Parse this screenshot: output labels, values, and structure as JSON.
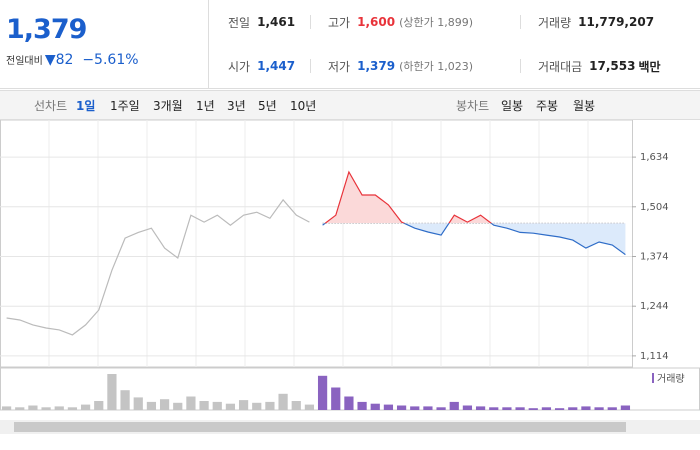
{
  "header": {
    "price": "1,379",
    "change_label": "전일대비",
    "change": "82",
    "change_rate": "−5.61%"
  },
  "stats": {
    "rows": [
      [
        {
          "label": "전일",
          "value": "1,461"
        },
        {
          "label": "고가",
          "value": "1,600",
          "note": "(상한가 1,899)"
        },
        {
          "label": "거래량",
          "value": "11,779,207"
        }
      ],
      [
        {
          "label": "시가",
          "value": "1,447"
        },
        {
          "label": "저가",
          "value": "1,379",
          "note": "(하한가 1,023)"
        },
        {
          "label": "거래대금",
          "value": "17,553",
          "unit": "백만"
        }
      ]
    ]
  },
  "tabs": {
    "line_label": "선차트",
    "line": [
      "1일",
      "1주일",
      "3개월",
      "1년",
      "3년",
      "5년",
      "10년"
    ],
    "candle_label": "봉차트",
    "candle": [
      "일봉",
      "주봉",
      "월봉"
    ]
  },
  "chart_data": {
    "type": "line",
    "categories": [
      null,
      null,
      null,
      null,
      null,
      null,
      null,
      null,
      null,
      null,
      null,
      null,
      null,
      null,
      null,
      null,
      null,
      null,
      null,
      null,
      null,
      null,
      null,
      null,
      null,
      null,
      null,
      null,
      null,
      null,
      null,
      null,
      null,
      null,
      null,
      null,
      null,
      null,
      null,
      null,
      null,
      null,
      null,
      null,
      null,
      null,
      null,
      null
    ],
    "ylim": [
      1098,
      1718
    ],
    "yticks": [
      {
        "value": 1634,
        "label": "1,634"
      },
      {
        "value": 1504,
        "label": "1,504"
      },
      {
        "value": 1374,
        "label": "1,374"
      },
      {
        "value": 1244,
        "label": "1,244"
      },
      {
        "value": 1114,
        "label": "1,114"
      }
    ],
    "grid": true,
    "reference": 1461,
    "series": [
      {
        "color": "#bbbbbb",
        "values": [
          1213,
          1208,
          1195,
          1187,
          1182,
          1169,
          1195,
          1234,
          1338,
          1422,
          1437,
          1448,
          1396,
          1370,
          1482,
          1464,
          1482,
          1456,
          1482,
          1490,
          1474,
          1522,
          1482,
          1464,
          null,
          null,
          null,
          null,
          null,
          null,
          null,
          null,
          null,
          null,
          null,
          null,
          null,
          null,
          null,
          null,
          null,
          null,
          null,
          null,
          null,
          null,
          null,
          null
        ]
      },
      {
        "color": "#e8333a",
        "color_down": "#2f6dc8",
        "values": [
          null,
          null,
          null,
          null,
          null,
          null,
          null,
          null,
          null,
          null,
          null,
          null,
          null,
          null,
          null,
          null,
          null,
          null,
          null,
          null,
          null,
          null,
          null,
          null,
          1456,
          1482,
          1595,
          1535,
          1535,
          1509,
          1464,
          1448,
          1438,
          1430,
          1482,
          1464,
          1482,
          1456,
          1448,
          1437,
          1435,
          1430,
          1425,
          1417,
          1396,
          1412,
          1404,
          1379
        ]
      }
    ],
    "volume_label": "거래량",
    "volume": [
      {
        "color": "#c4c4c4",
        "values": [
          4,
          3,
          5,
          3,
          4,
          3,
          6,
          10,
          40,
          22,
          14,
          9,
          12,
          8,
          15,
          10,
          9,
          7,
          11,
          8,
          9,
          18,
          10,
          6,
          null,
          null,
          null,
          null,
          null,
          null,
          null,
          null,
          null,
          null,
          null,
          null,
          null,
          null,
          null,
          null,
          null,
          null,
          null,
          null,
          null,
          null,
          null,
          null
        ]
      },
      {
        "color": "#8a63c0",
        "values": [
          null,
          null,
          null,
          null,
          null,
          null,
          null,
          null,
          null,
          null,
          null,
          null,
          null,
          null,
          null,
          null,
          null,
          null,
          null,
          null,
          null,
          null,
          null,
          null,
          38,
          25,
          15,
          9,
          7,
          6,
          5,
          4,
          4,
          3,
          9,
          5,
          4,
          3,
          3,
          3,
          2,
          3,
          2,
          3,
          4,
          3,
          3,
          5
        ]
      }
    ]
  }
}
